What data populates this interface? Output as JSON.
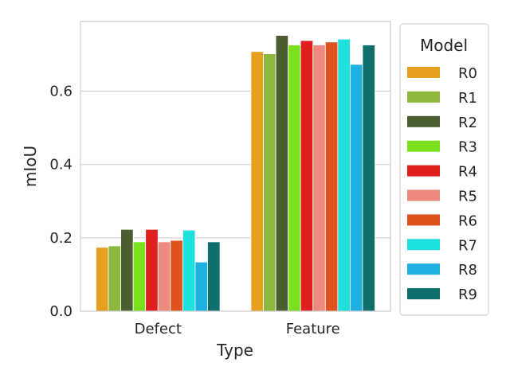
{
  "chart_data": {
    "type": "bar",
    "xlabel": "Type",
    "ylabel": "mIoU",
    "categories": [
      "Defect",
      "Feature"
    ],
    "ylim": [
      0,
      0.79
    ],
    "yticks": [
      "0.0",
      "0.2",
      "0.4",
      "0.6"
    ],
    "grid": true,
    "legend": {
      "title": "Model",
      "placement": "outside-right"
    },
    "series": [
      {
        "name": "R0",
        "color": "#e69f1e",
        "values": [
          0.174,
          0.708
        ]
      },
      {
        "name": "R1",
        "color": "#8db83d",
        "values": [
          0.178,
          0.702
        ]
      },
      {
        "name": "R2",
        "color": "#4a5e31",
        "values": [
          0.223,
          0.752
        ]
      },
      {
        "name": "R3",
        "color": "#7be01d",
        "values": [
          0.189,
          0.726
        ]
      },
      {
        "name": "R4",
        "color": "#e01f1f",
        "values": [
          0.223,
          0.738
        ]
      },
      {
        "name": "R5",
        "color": "#ec8a7d",
        "values": [
          0.189,
          0.726
        ]
      },
      {
        "name": "R6",
        "color": "#e0521d",
        "values": [
          0.193,
          0.734
        ]
      },
      {
        "name": "R7",
        "color": "#1ee0dc",
        "values": [
          0.221,
          0.742
        ]
      },
      {
        "name": "R8",
        "color": "#1fb0e0",
        "values": [
          0.134,
          0.673
        ]
      },
      {
        "name": "R9",
        "color": "#0e6f6c",
        "values": [
          0.189,
          0.726
        ]
      }
    ]
  }
}
